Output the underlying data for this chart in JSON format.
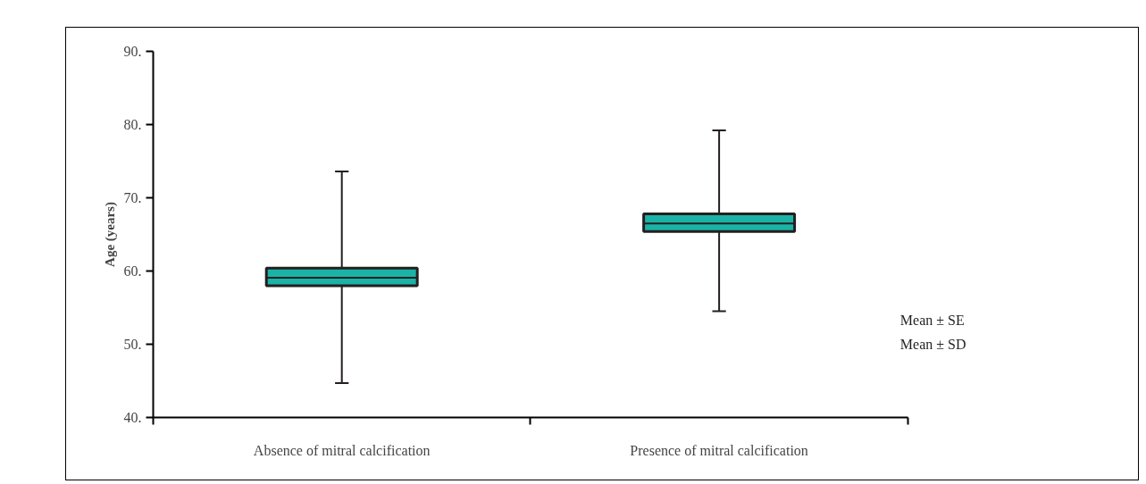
{
  "chart_data": {
    "type": "box",
    "ylabel": "Age (years)",
    "categories": [
      "Absence of mitral calcification",
      "Presence of mitral calcification"
    ],
    "color": "#1ab3a6",
    "boxes": [
      {
        "low": 44.7,
        "q1": 58.0,
        "median": 59.1,
        "q3": 60.4,
        "high": 73.6
      },
      {
        "low": 54.5,
        "q1": 65.4,
        "median": 66.5,
        "q3": 67.8,
        "high": 79.2
      }
    ],
    "ylim": [
      40,
      90
    ],
    "yticks": [
      {
        "value": 40,
        "label": "40."
      },
      {
        "value": 50,
        "label": "50."
      },
      {
        "value": 60,
        "label": "60."
      },
      {
        "value": 70,
        "label": "70."
      },
      {
        "value": 80,
        "label": "80."
      },
      {
        "value": 90,
        "label": "90."
      }
    ],
    "annotations": [
      "Mean ± SE",
      "Mean ± SD"
    ]
  }
}
